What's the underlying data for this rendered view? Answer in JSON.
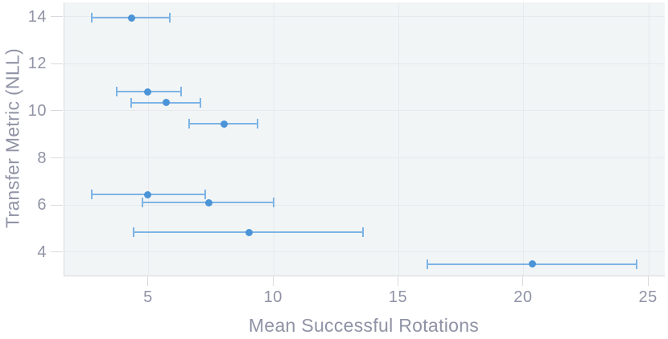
{
  "chart_data": {
    "type": "scatter",
    "title": "",
    "xlabel": "Mean Successful Rotations",
    "ylabel": "Transfer Metric (NLL)",
    "xlim": [
      1.62,
      25.64
    ],
    "ylim": [
      3.01,
      14.6
    ],
    "xticks": [
      5,
      10,
      15,
      20,
      25
    ],
    "yticks": [
      4,
      6,
      8,
      10,
      12,
      14
    ],
    "grid": true,
    "legend_position": "none",
    "series": [
      {
        "name": "points-with-xerr",
        "marker": "circle",
        "points": [
          {
            "x": 4.3,
            "y": 13.95,
            "xlo": 2.7,
            "xhi": 5.85
          },
          {
            "x": 4.95,
            "y": 10.8,
            "xlo": 3.7,
            "xhi": 6.3
          },
          {
            "x": 5.7,
            "y": 10.35,
            "xlo": 4.3,
            "xhi": 7.05
          },
          {
            "x": 8.0,
            "y": 9.45,
            "xlo": 6.6,
            "xhi": 9.35
          },
          {
            "x": 4.95,
            "y": 6.45,
            "xlo": 2.7,
            "xhi": 7.25
          },
          {
            "x": 7.4,
            "y": 6.1,
            "xlo": 4.75,
            "xhi": 10.0
          },
          {
            "x": 9.0,
            "y": 4.85,
            "xlo": 4.4,
            "xhi": 13.55
          },
          {
            "x": 20.35,
            "y": 3.5,
            "xlo": 16.15,
            "xhi": 24.5
          }
        ]
      }
    ],
    "colors": {
      "marker": "#4b94d7",
      "errorbar": "#7db4e6",
      "grid": "#e6eaed",
      "axis": "#d7dade",
      "text": "#8f93a5",
      "plot_background": "#f2f5f6"
    }
  }
}
